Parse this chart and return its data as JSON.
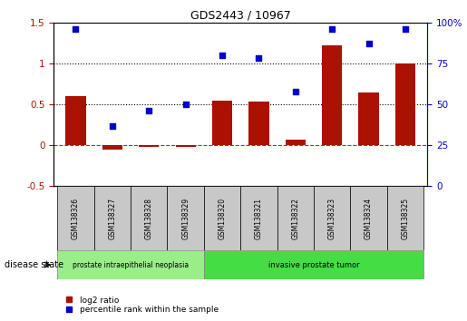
{
  "title": "GDS2443 / 10967",
  "samples": [
    "GSM138326",
    "GSM138327",
    "GSM138328",
    "GSM138329",
    "GSM138320",
    "GSM138321",
    "GSM138322",
    "GSM138323",
    "GSM138324",
    "GSM138325"
  ],
  "log2_ratio": [
    0.6,
    -0.05,
    -0.02,
    -0.02,
    0.55,
    0.53,
    0.07,
    1.22,
    0.65,
    1.0
  ],
  "percentile_rank": [
    96,
    37,
    46,
    50,
    80,
    78,
    58,
    96,
    87,
    96
  ],
  "bar_color": "#AA1100",
  "dot_color": "#0000CC",
  "ylim_left": [
    -0.5,
    1.5
  ],
  "ylim_right": [
    0,
    100
  ],
  "yticks_left": [
    -0.5,
    0.0,
    0.5,
    1.0,
    1.5
  ],
  "ytick_labels_left": [
    "-0.5",
    "0",
    "0.5",
    "1",
    "1.5"
  ],
  "yticks_right": [
    0,
    25,
    50,
    75,
    100
  ],
  "ytick_labels_right": [
    "0",
    "25",
    "50",
    "75",
    "100%"
  ],
  "hlines": [
    0.5,
    1.0
  ],
  "zero_line_color": "#CC2200",
  "group0_label": "prostate intraepithelial neoplasia",
  "group0_color": "#99EE88",
  "group0_indices": [
    0,
    1,
    2,
    3
  ],
  "group1_label": "invasive prostate tumor",
  "group1_color": "#44DD44",
  "group1_indices": [
    4,
    5,
    6,
    7,
    8,
    9
  ],
  "disease_state_label": "disease state",
  "legend_log2": "log2 ratio",
  "legend_pct": "percentile rank within the sample",
  "bg_color": "#FFFFFF",
  "sample_box_color": "#C8C8C8"
}
